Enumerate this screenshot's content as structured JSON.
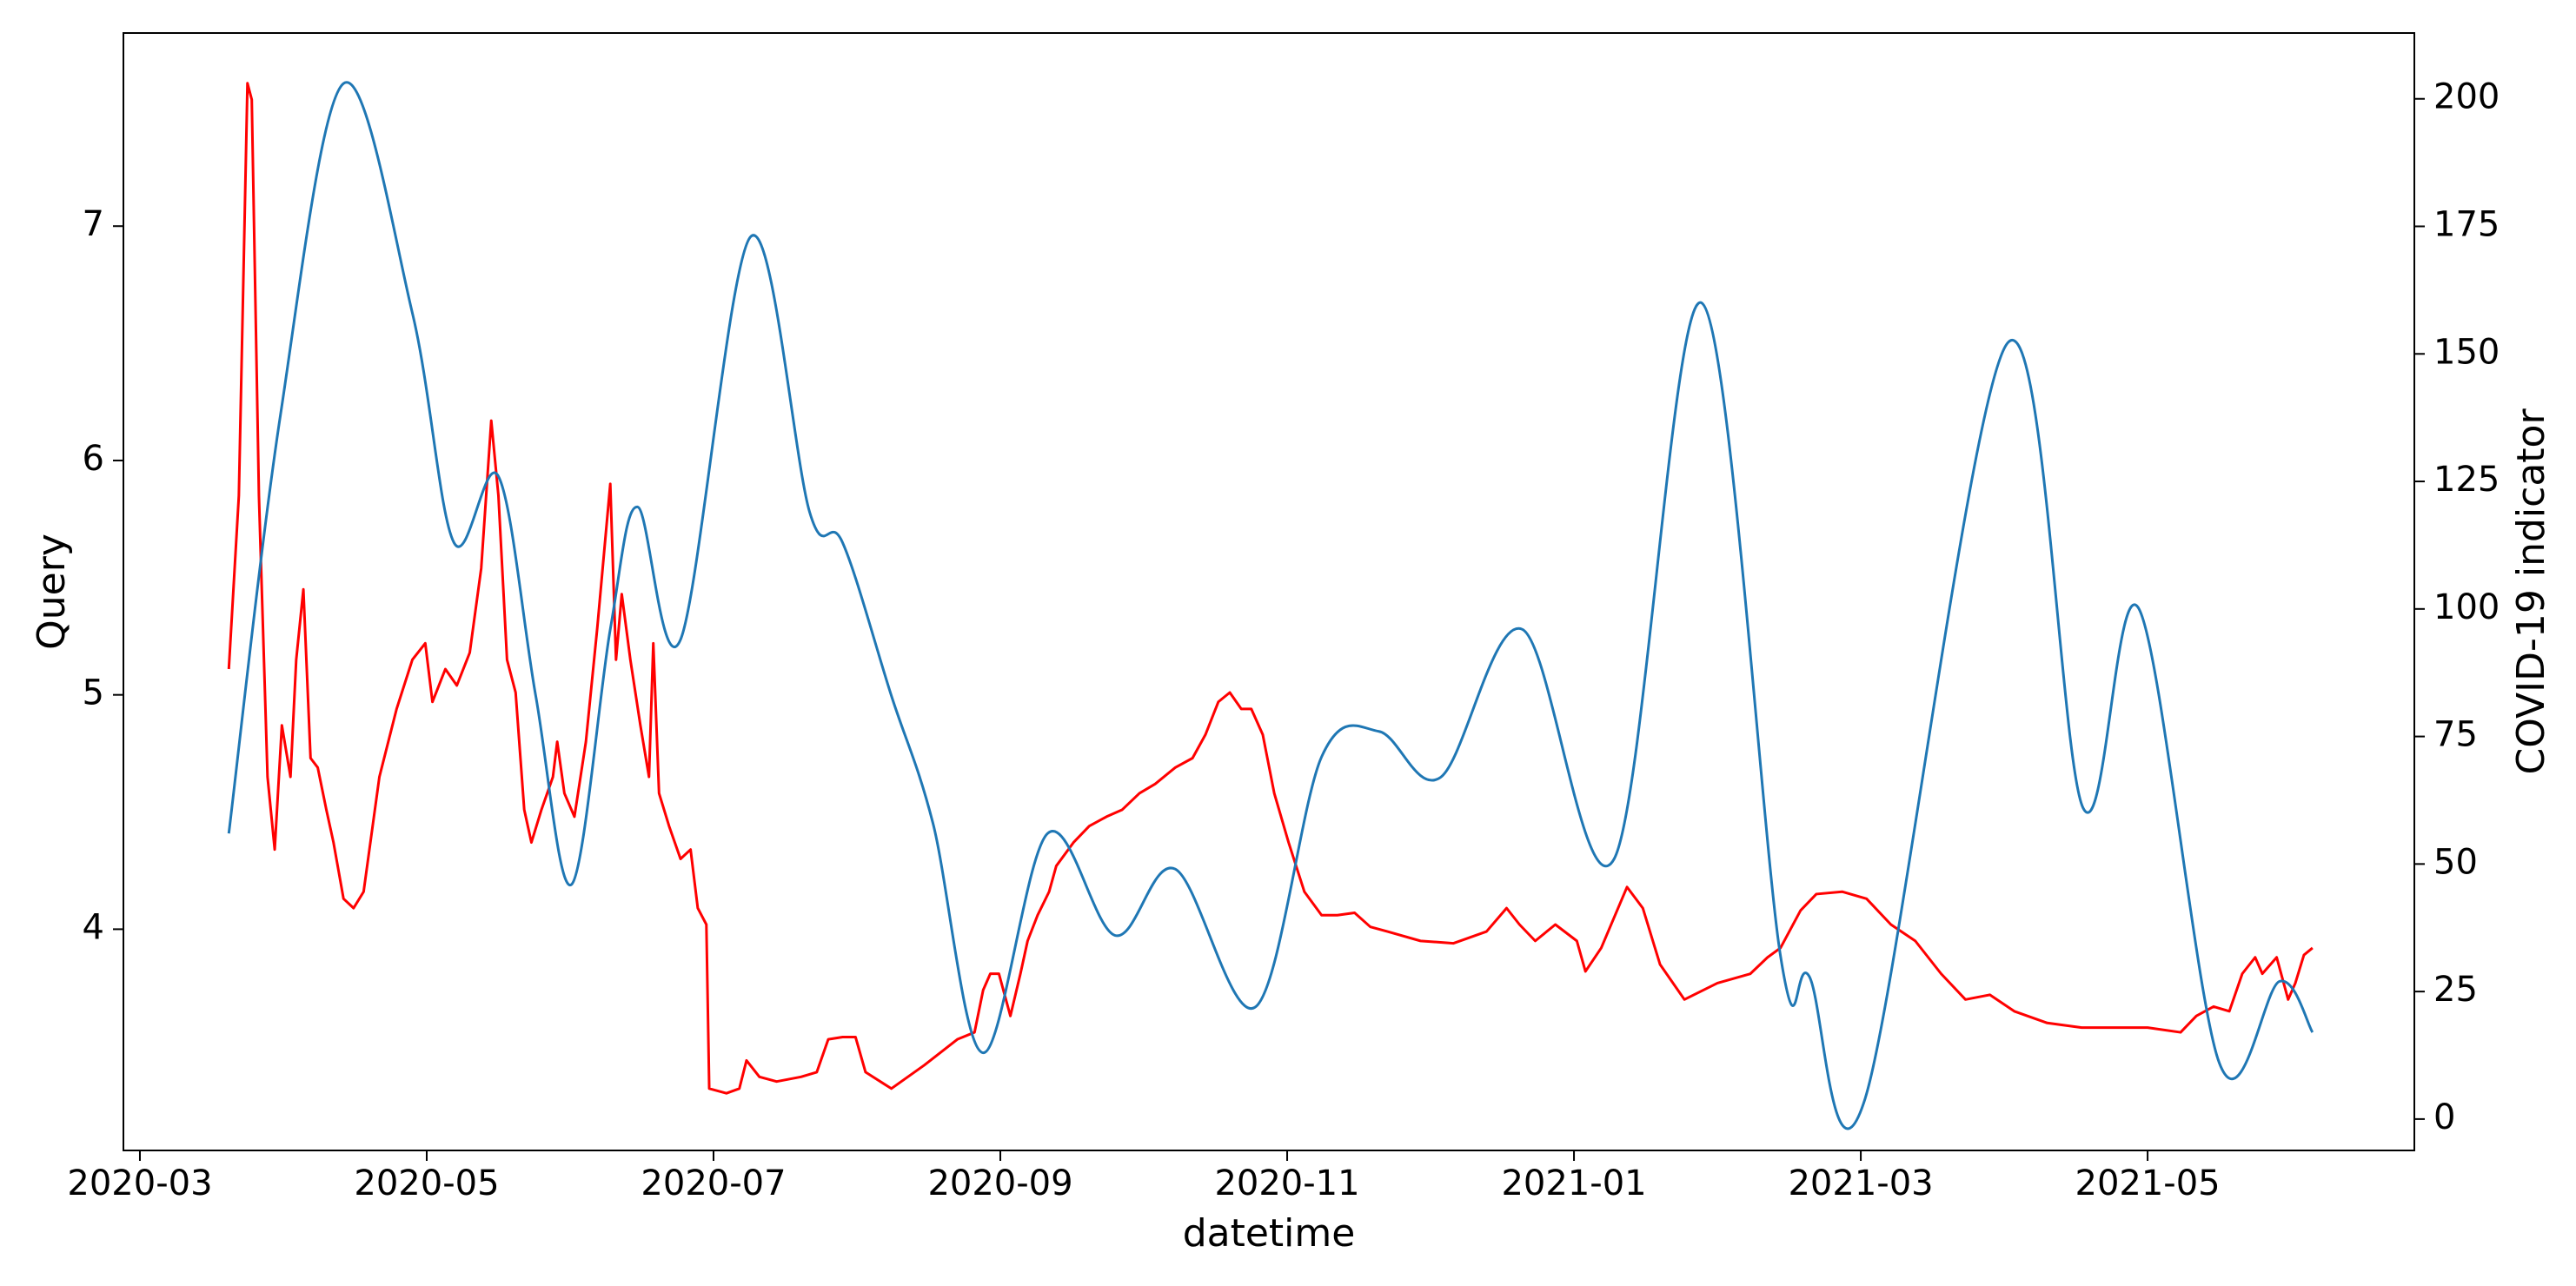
{
  "chart_data": {
    "type": "line",
    "xlabel": "datetime",
    "ylabel": "Query",
    "y2label": "COVID-19 indicator",
    "xlim": [
      2.885,
      18.86
    ],
    "xticks": [
      {
        "value": 3,
        "label": "2020-03"
      },
      {
        "value": 5,
        "label": "2020-05"
      },
      {
        "value": 7,
        "label": "2020-07"
      },
      {
        "value": 9,
        "label": "2020-09"
      },
      {
        "value": 11,
        "label": "2020-11"
      },
      {
        "value": 13,
        "label": "2021-01"
      },
      {
        "value": 15,
        "label": "2021-03"
      },
      {
        "value": 17,
        "label": "2021-05"
      }
    ],
    "ylim": [
      3.056,
      7.824
    ],
    "yticks": [
      4,
      5,
      6,
      7
    ],
    "y2lim": [
      -6.15,
      212.9
    ],
    "y2ticks": [
      0,
      25,
      50,
      75,
      100,
      125,
      150,
      175,
      200
    ],
    "series": [
      {
        "color": "#ff0000",
        "axis": "y",
        "x": [
          3.62,
          3.69,
          3.75,
          3.78,
          3.83,
          3.89,
          3.94,
          3.99,
          4.05,
          4.09,
          4.14,
          4.19,
          4.24,
          4.3,
          4.35,
          4.42,
          4.49,
          4.56,
          4.67,
          4.79,
          4.9,
          4.99,
          5.04,
          5.13,
          5.21,
          5.3,
          5.38,
          5.45,
          5.5,
          5.56,
          5.62,
          5.68,
          5.73,
          5.8,
          5.88,
          5.91,
          5.96,
          6.03,
          6.11,
          6.19,
          6.28,
          6.32,
          6.36,
          6.42,
          6.49,
          6.55,
          6.58,
          6.62,
          6.69,
          6.77,
          6.84,
          6.89,
          6.95,
          6.97,
          7.09,
          7.18,
          7.23,
          7.32,
          7.44,
          7.61,
          7.72,
          7.8,
          7.9,
          7.99,
          8.06,
          8.24,
          8.47,
          8.7,
          8.82,
          8.88,
          8.93,
          8.99,
          9.07,
          9.14,
          9.19,
          9.26,
          9.34,
          9.39,
          9.51,
          9.62,
          9.74,
          9.85,
          9.97,
          10.08,
          10.22,
          10.34,
          10.43,
          10.52,
          10.6,
          10.68,
          10.75,
          10.83,
          10.91,
          11.01,
          11.12,
          11.24,
          11.35,
          11.47,
          11.58,
          11.7,
          11.93,
          12.16,
          12.39,
          12.53,
          12.62,
          12.73,
          12.87,
          13.02,
          13.08,
          13.19,
          13.37,
          13.48,
          13.6,
          13.77,
          14.0,
          14.23,
          14.35,
          14.44,
          14.58,
          14.69,
          14.87,
          15.04,
          15.21,
          15.38,
          15.56,
          15.73,
          15.9,
          16.07,
          16.3,
          16.54,
          16.77,
          17.0,
          17.23,
          17.34,
          17.46,
          17.57,
          17.66,
          17.75,
          17.8,
          17.9,
          17.98,
          18.03,
          18.09,
          18.15
        ],
        "values": [
          5.11,
          5.85,
          7.61,
          7.54,
          5.85,
          4.65,
          4.34,
          4.87,
          4.65,
          5.15,
          5.45,
          4.73,
          4.69,
          4.51,
          4.37,
          4.13,
          4.09,
          4.16,
          4.65,
          4.94,
          5.15,
          5.22,
          4.97,
          5.11,
          5.04,
          5.18,
          5.54,
          6.17,
          5.85,
          5.15,
          5.01,
          4.51,
          4.37,
          4.51,
          4.65,
          4.8,
          4.58,
          4.48,
          4.8,
          5.29,
          5.9,
          5.15,
          5.43,
          5.15,
          4.87,
          4.65,
          5.22,
          4.58,
          4.44,
          4.3,
          4.34,
          4.09,
          4.02,
          3.32,
          3.3,
          3.32,
          3.44,
          3.37,
          3.35,
          3.37,
          3.39,
          3.53,
          3.54,
          3.54,
          3.39,
          3.32,
          3.42,
          3.53,
          3.56,
          3.74,
          3.81,
          3.81,
          3.63,
          3.81,
          3.95,
          4.06,
          4.16,
          4.27,
          4.37,
          4.44,
          4.48,
          4.51,
          4.58,
          4.62,
          4.69,
          4.73,
          4.83,
          4.97,
          5.01,
          4.94,
          4.94,
          4.83,
          4.58,
          4.37,
          4.16,
          4.06,
          4.06,
          4.07,
          4.01,
          3.99,
          3.95,
          3.94,
          3.99,
          4.09,
          4.02,
          3.95,
          4.02,
          3.95,
          3.82,
          3.92,
          4.18,
          4.09,
          3.85,
          3.7,
          3.77,
          3.81,
          3.88,
          3.92,
          4.08,
          4.15,
          4.16,
          4.13,
          4.02,
          3.95,
          3.81,
          3.7,
          3.72,
          3.65,
          3.6,
          3.58,
          3.58,
          3.58,
          3.56,
          3.63,
          3.67,
          3.65,
          3.81,
          3.88,
          3.81,
          3.88,
          3.7,
          3.77,
          3.89,
          3.92
        ]
      },
      {
        "color": "#1f77b4",
        "axis": "y2",
        "x": [
          3.62,
          3.98,
          4.42,
          4.9,
          5.19,
          5.5,
          5.76,
          6.01,
          6.28,
          6.47,
          6.77,
          7.26,
          7.67,
          7.9,
          8.24,
          8.53,
          8.88,
          9.33,
          9.8,
          10.22,
          10.78,
          11.24,
          11.64,
          12.07,
          12.64,
          13.28,
          13.89,
          14.44,
          14.64,
          15.03,
          16.02,
          16.55,
          16.94,
          17.5,
          17.92,
          18.15
        ],
        "values": [
          56,
          138,
          203,
          158,
          113,
          126,
          83,
          46,
          96,
          120,
          94,
          173,
          119,
          113,
          83,
          58,
          13,
          56,
          36,
          49,
          22,
          71,
          76,
          67,
          96,
          51,
          160,
          32,
          28,
          4,
          152,
          61,
          100,
          11,
          27,
          17
        ]
      }
    ]
  }
}
